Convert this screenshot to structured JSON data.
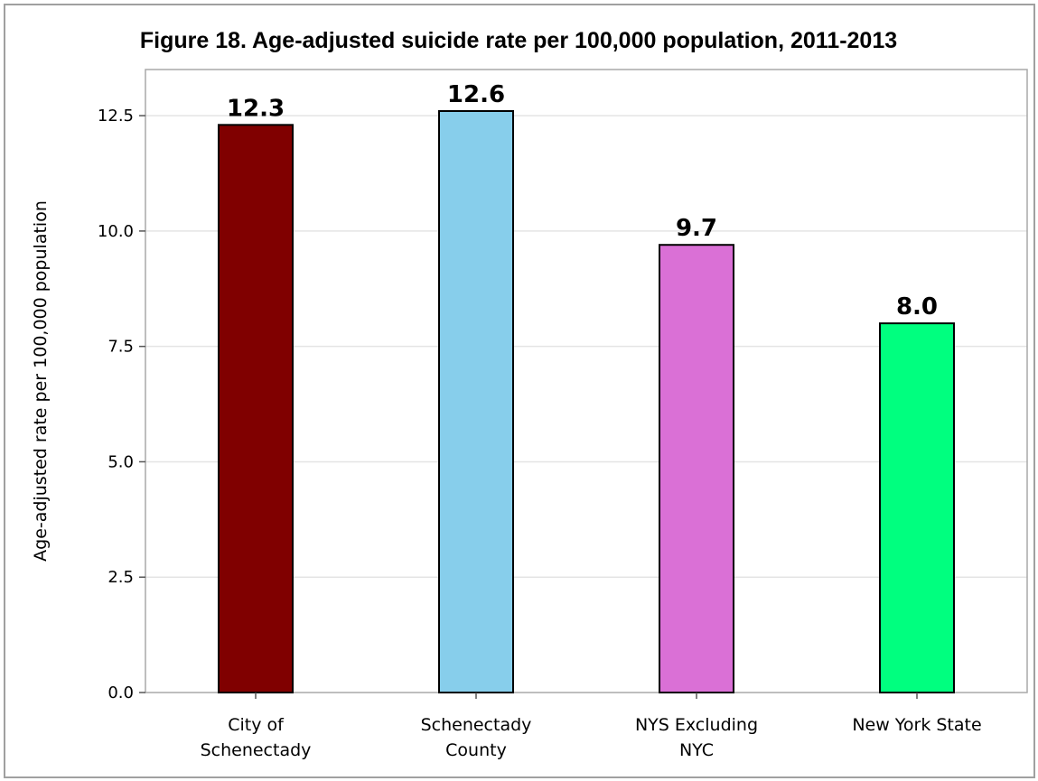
{
  "chart_data": {
    "type": "bar",
    "title": "Figure 18. Age-adjusted suicide rate per 100,000 population, 2011-2013",
    "xlabel": "",
    "ylabel": "Age-adjusted rate per 100,000 population",
    "categories": [
      [
        "City of",
        "Schenectady"
      ],
      [
        "Schenectady",
        "County"
      ],
      [
        "NYS Excluding",
        "NYC"
      ],
      [
        "New York State"
      ]
    ],
    "values": [
      12.3,
      12.6,
      9.7,
      8.0
    ],
    "data_labels": [
      "12.3",
      "12.6",
      "9.7",
      "8.0"
    ],
    "colors": [
      "#800000",
      "#87ceeb",
      "#da70d6",
      "#00ff7f"
    ],
    "ylim": [
      0,
      13.5
    ],
    "yticks": [
      0.0,
      2.5,
      5.0,
      7.5,
      10.0,
      12.5
    ],
    "ytick_labels": [
      "0.0",
      "2.5",
      "5.0",
      "7.5",
      "10.0",
      "12.5"
    ],
    "grid": true,
    "legend": "none"
  }
}
